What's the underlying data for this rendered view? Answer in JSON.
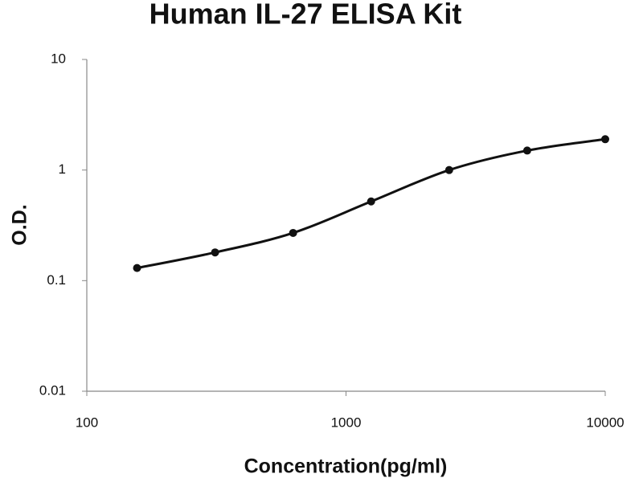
{
  "chart_data": {
    "type": "scatter",
    "title": "Human IL-27 ELISA Kit",
    "x_label": "Concentration(pg/ml)",
    "y_label": "O.D.",
    "x": [
      156.25,
      312.5,
      625,
      1250,
      2500,
      5000,
      10000
    ],
    "values": [
      0.13,
      0.18,
      0.27,
      0.52,
      1.0,
      1.5,
      1.9
    ],
    "color": "#111111",
    "curve": "smooth",
    "xscale": "log",
    "yscale": "log",
    "xlim": [
      100,
      10000
    ],
    "ylim": [
      0.01,
      10
    ],
    "xticks": [
      100,
      1000,
      10000
    ],
    "yticks": [
      0.01,
      0.1,
      1,
      10
    ]
  }
}
